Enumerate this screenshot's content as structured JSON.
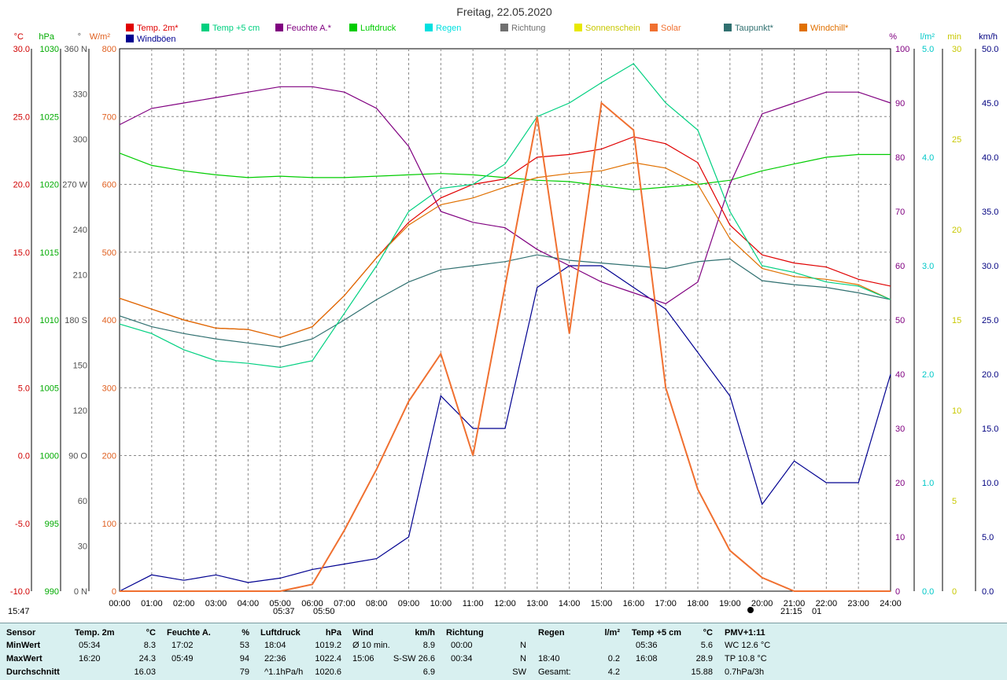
{
  "title": "Freitag, 22.05.2020",
  "legend": [
    {
      "label": "Temp. 2m*",
      "color": "#e00000"
    },
    {
      "label": "Temp +5 cm",
      "color": "#00d080"
    },
    {
      "label": "Feuchte A.*",
      "color": "#800080"
    },
    {
      "label": "Luftdruck",
      "color": "#00cc00"
    },
    {
      "label": "Regen",
      "color": "#00e0e0"
    },
    {
      "label": "Richtung",
      "color": "#707070"
    },
    {
      "label": "Sonnenschein",
      "color": "#e8e800"
    },
    {
      "label": "Solar",
      "color": "#f07030"
    },
    {
      "label": "Taupunkt*",
      "color": "#307070"
    },
    {
      "label": "Windchill*",
      "color": "#e07000"
    },
    {
      "label": "Windböen",
      "color": "#000090"
    }
  ],
  "axes": {
    "temp": {
      "unit": "°C",
      "color": "#d00000",
      "ticks": [
        "30.0",
        "25.0",
        "20.0",
        "15.0",
        "10.0",
        "5.0",
        "0.0",
        "-5.0",
        "-10.0"
      ]
    },
    "press": {
      "unit": "hPa",
      "color": "#00aa00",
      "ticks": [
        "1030",
        "1025",
        "1020",
        "1015",
        "1010",
        "1005",
        "1000",
        "995",
        "990"
      ]
    },
    "dir": {
      "unit": "°",
      "color": "#505050",
      "ticks": [
        "360 N",
        "330",
        "300",
        "270 W",
        "240",
        "210",
        "180 S",
        "150",
        "120",
        "90 O",
        "60",
        "30",
        "0 N"
      ]
    },
    "solar": {
      "unit": "W/m²",
      "color": "#e06020",
      "ticks": [
        "800",
        "700",
        "600",
        "500",
        "400",
        "300",
        "200",
        "100",
        "0"
      ]
    },
    "hum": {
      "unit": "%",
      "color": "#800080",
      "ticks": [
        "100",
        "90",
        "80",
        "70",
        "60",
        "50",
        "40",
        "30",
        "20",
        "10",
        "0"
      ]
    },
    "rain": {
      "unit": "l/m²",
      "color": "#00c8c8",
      "ticks": [
        "5.0",
        "4.0",
        "3.0",
        "2.0",
        "1.0",
        "0.0"
      ]
    },
    "sun": {
      "unit": "min",
      "color": "#c8c800",
      "ticks": [
        "30",
        "25",
        "20",
        "15",
        "10",
        "5",
        "0"
      ]
    },
    "wind": {
      "unit": "km/h",
      "color": "#000080",
      "ticks": [
        "50.0",
        "45.0",
        "40.0",
        "35.0",
        "30.0",
        "25.0",
        "20.0",
        "15.0",
        "10.0",
        "5.0",
        "0.0"
      ]
    }
  },
  "time_labels": [
    "00:00",
    "01:00",
    "02:00",
    "03:00",
    "04:00",
    "05:00",
    "06:00",
    "07:00",
    "08:00",
    "09:00",
    "10:00",
    "11:00",
    "12:00",
    "13:00",
    "14:00",
    "15:00",
    "16:00",
    "17:00",
    "18:00",
    "19:00",
    "20:00",
    "21:00",
    "22:00",
    "23:00",
    "24:00"
  ],
  "sun_markers": {
    "day_length": "15:47",
    "sunrise": "05:37",
    "sunrise2": "05:50",
    "sunset": "21:15",
    "sunset_suffix": "01"
  },
  "chart_data": {
    "type": "line",
    "x": [
      "00:00",
      "01:00",
      "02:00",
      "03:00",
      "04:00",
      "05:00",
      "06:00",
      "07:00",
      "08:00",
      "09:00",
      "10:00",
      "11:00",
      "12:00",
      "13:00",
      "14:00",
      "15:00",
      "16:00",
      "17:00",
      "18:00",
      "19:00",
      "20:00",
      "21:00",
      "22:00",
      "23:00",
      "24:00"
    ],
    "series": [
      {
        "name": "Temp. 2m*",
        "axis": "temp",
        "color": "#e00000",
        "values": [
          11.6,
          10.8,
          10.0,
          9.4,
          9.3,
          8.7,
          9.5,
          11.8,
          14.6,
          17.2,
          19.0,
          20.0,
          20.4,
          22.0,
          22.2,
          22.6,
          23.5,
          23.0,
          21.6,
          17.0,
          14.8,
          14.2,
          13.9,
          13.0,
          12.5
        ]
      },
      {
        "name": "Temp +5 cm",
        "axis": "temp",
        "color": "#00d080",
        "values": [
          9.7,
          9.0,
          7.8,
          7.0,
          6.8,
          6.5,
          7.0,
          10.5,
          14.0,
          18.0,
          19.7,
          20.0,
          21.5,
          25.0,
          26.0,
          27.5,
          28.9,
          26.0,
          24.0,
          18.0,
          14.0,
          13.5,
          12.8,
          12.5,
          11.5
        ]
      },
      {
        "name": "Feuchte A.*",
        "axis": "hum",
        "color": "#800080",
        "values": [
          86,
          89,
          90,
          91,
          92,
          93,
          93,
          92,
          89,
          82,
          70,
          68,
          67,
          63,
          60,
          57,
          55,
          53,
          57,
          75,
          88,
          90,
          92,
          92,
          90
        ]
      },
      {
        "name": "Luftdruck",
        "axis": "press",
        "color": "#00cc00",
        "values": [
          1022.3,
          1021.4,
          1021.0,
          1020.7,
          1020.5,
          1020.6,
          1020.5,
          1020.5,
          1020.6,
          1020.7,
          1020.8,
          1020.7,
          1020.5,
          1020.3,
          1020.2,
          1019.9,
          1019.6,
          1019.8,
          1020.0,
          1020.3,
          1021.0,
          1021.5,
          1022.0,
          1022.2,
          1022.2
        ]
      },
      {
        "name": "Solar",
        "axis": "solar",
        "color": "#f07030",
        "values": [
          0,
          0,
          0,
          0,
          0,
          0,
          10,
          90,
          180,
          280,
          350,
          200,
          450,
          700,
          380,
          720,
          680,
          300,
          150,
          60,
          20,
          0,
          0,
          0,
          0
        ]
      },
      {
        "name": "Taupunkt*",
        "axis": "temp",
        "color": "#307070",
        "values": [
          10.3,
          9.5,
          9.0,
          8.6,
          8.3,
          8.0,
          8.6,
          10.0,
          11.5,
          12.8,
          13.7,
          14.0,
          14.3,
          14.8,
          14.4,
          14.2,
          14.0,
          13.8,
          14.3,
          14.5,
          12.9,
          12.6,
          12.4,
          12.0,
          11.5
        ]
      },
      {
        "name": "Windchill*",
        "axis": "temp",
        "color": "#e07000",
        "values": [
          11.6,
          10.8,
          10.0,
          9.4,
          9.3,
          8.7,
          9.5,
          11.8,
          14.6,
          17.0,
          18.5,
          19.0,
          19.8,
          20.5,
          20.8,
          21.0,
          21.6,
          21.2,
          20.0,
          16.0,
          13.8,
          13.2,
          13.0,
          12.6,
          11.5
        ]
      },
      {
        "name": "Windböen",
        "axis": "wind",
        "color": "#000090",
        "values": [
          0,
          1.5,
          1.0,
          1.5,
          0.8,
          1.2,
          2.0,
          2.5,
          3.0,
          5.0,
          18.0,
          15.0,
          15.0,
          28.0,
          30.0,
          30.0,
          28.0,
          26.0,
          22.0,
          18.0,
          8.0,
          12.0,
          10.0,
          10.0,
          20.0
        ]
      }
    ],
    "ylim_temp": [
      -10,
      30
    ],
    "ylim_press": [
      990,
      1030
    ],
    "ylim_hum": [
      0,
      100
    ],
    "ylim_solar": [
      0,
      800
    ],
    "ylim_wind": [
      0,
      50
    ]
  },
  "table": {
    "headers": [
      {
        "t": "Sensor"
      },
      {
        "t": "Temp. 2m"
      },
      {
        "t": "°C"
      },
      {
        "t": "Feuchte A."
      },
      {
        "t": "%"
      },
      {
        "t": "Luftdruck"
      },
      {
        "t": "hPa"
      },
      {
        "t": "Wind"
      },
      {
        "t": "km/h"
      },
      {
        "t": "Richtung"
      },
      {
        "t": "Regen"
      },
      {
        "t": "l/m²"
      },
      {
        "t": "Temp +5 cm"
      },
      {
        "t": "°C"
      },
      {
        "t": "PMV+1:11"
      }
    ],
    "rows": [
      {
        "label": "MinWert",
        "c": [
          "05:34",
          "8.3",
          "17:02",
          "53",
          "18:04",
          "1019.2",
          "Ø 10 min.",
          "8.9",
          "00:00",
          "N",
          "",
          "",
          "05:36",
          "5.6",
          "WC 12.6 °C"
        ]
      },
      {
        "label": "MaxWert",
        "c": [
          "16:20",
          "24.3",
          "05:49",
          "94",
          "22:36",
          "1022.4",
          "15:06",
          "S-SW 26.6",
          "00:34",
          "N",
          "18:40",
          "0.2",
          "16:08",
          "28.9",
          "TP 10.8 °C"
        ]
      },
      {
        "label": "Durchschnitt",
        "c": [
          "",
          "16.03",
          "",
          "79",
          "^1.1hPa/h",
          "1020.6",
          "",
          "6.9",
          "",
          "SW",
          "Gesamt:",
          "4.2",
          "",
          "15.88",
          "0.7hPa/3h"
        ]
      }
    ]
  }
}
